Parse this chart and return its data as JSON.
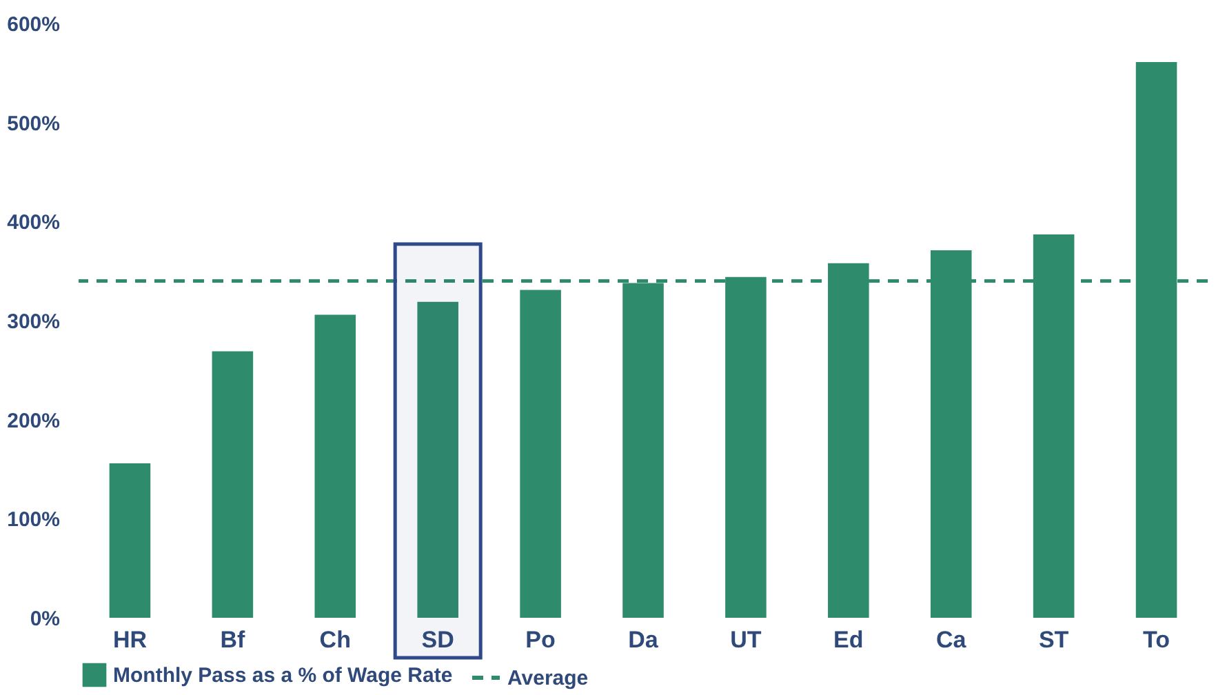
{
  "chart_data": {
    "type": "bar",
    "categories": [
      "HR",
      "Bf",
      "Ch",
      "SD",
      "Po",
      "Da",
      "UT",
      "Ed",
      "Ca",
      "ST",
      "To"
    ],
    "series": [
      {
        "name": "Monthly Pass as a % of Wage Rate",
        "color": "#2e8b6b",
        "values": [
          156,
          269,
          306,
          319,
          331,
          338,
          344,
          358,
          371,
          387,
          561
        ]
      }
    ],
    "ylim": [
      0,
      600
    ],
    "yticks": [
      {
        "value": 0,
        "label": "0%"
      },
      {
        "value": 100,
        "label": "100%"
      },
      {
        "value": 200,
        "label": "200%"
      },
      {
        "value": 300,
        "label": "300%"
      },
      {
        "value": 400,
        "label": "400%"
      },
      {
        "value": 500,
        "label": "500%"
      },
      {
        "value": 600,
        "label": "600%"
      }
    ],
    "ref_lines": [
      {
        "axis": "y",
        "value": 340,
        "label": "Average",
        "color": "#2e8b6b",
        "line_style": "dashed"
      }
    ],
    "bands": [
      {
        "axis": "x",
        "from": "SD",
        "to": "SD",
        "color": "#2f4a8a"
      }
    ],
    "grid": false,
    "legend": "bottom"
  }
}
